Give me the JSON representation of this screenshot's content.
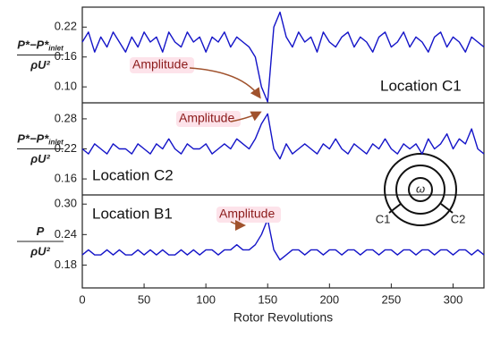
{
  "chart_data": [
    {
      "type": "line",
      "color": "#1414c8",
      "ylabel": {
        "numerator": "P*−P*",
        "numerator_subscript": "inlet",
        "denominator": "ρU²"
      },
      "annotation": "Amplitude",
      "location_label": "Location C1",
      "xlim": [
        0,
        325
      ],
      "ylim": [
        0.068,
        0.26
      ],
      "yticks": [
        {
          "value": 0.1,
          "label": "0.10"
        },
        0.16,
        0.22
      ],
      "x": [
        0,
        5,
        10,
        15,
        20,
        25,
        30,
        35,
        40,
        45,
        50,
        55,
        60,
        65,
        70,
        75,
        80,
        85,
        90,
        95,
        100,
        105,
        110,
        115,
        120,
        125,
        130,
        135,
        140,
        145,
        150,
        155,
        160,
        165,
        170,
        175,
        180,
        185,
        190,
        195,
        200,
        205,
        210,
        215,
        220,
        225,
        230,
        235,
        240,
        245,
        250,
        255,
        260,
        265,
        270,
        275,
        280,
        285,
        290,
        295,
        300,
        305,
        310,
        315,
        320,
        325
      ],
      "values": [
        0.19,
        0.21,
        0.17,
        0.2,
        0.18,
        0.21,
        0.19,
        0.17,
        0.2,
        0.18,
        0.21,
        0.19,
        0.2,
        0.17,
        0.21,
        0.19,
        0.18,
        0.21,
        0.19,
        0.2,
        0.17,
        0.2,
        0.19,
        0.21,
        0.18,
        0.2,
        0.19,
        0.18,
        0.16,
        0.1,
        0.07,
        0.22,
        0.25,
        0.2,
        0.18,
        0.21,
        0.19,
        0.2,
        0.17,
        0.21,
        0.19,
        0.18,
        0.2,
        0.21,
        0.18,
        0.2,
        0.19,
        0.17,
        0.2,
        0.21,
        0.18,
        0.19,
        0.21,
        0.18,
        0.2,
        0.19,
        0.17,
        0.2,
        0.21,
        0.18,
        0.2,
        0.19,
        0.17,
        0.2,
        0.19,
        0.18
      ]
    },
    {
      "type": "line",
      "color": "#1414c8",
      "ylabel": {
        "numerator": "P*−P*",
        "numerator_subscript": "inlet",
        "denominator": "ρU²"
      },
      "annotation": "Amplitude",
      "location_label": "Location C2",
      "xlim": [
        0,
        325
      ],
      "ylim": [
        0.128,
        0.312
      ],
      "yticks": [
        0.16,
        0.22,
        0.28
      ],
      "x": [
        0,
        5,
        10,
        15,
        20,
        25,
        30,
        35,
        40,
        45,
        50,
        55,
        60,
        65,
        70,
        75,
        80,
        85,
        90,
        95,
        100,
        105,
        110,
        115,
        120,
        125,
        130,
        135,
        140,
        145,
        150,
        155,
        160,
        165,
        170,
        175,
        180,
        185,
        190,
        195,
        200,
        205,
        210,
        215,
        220,
        225,
        230,
        235,
        240,
        245,
        250,
        255,
        260,
        265,
        270,
        275,
        280,
        285,
        290,
        295,
        300,
        305,
        310,
        315,
        320,
        325
      ],
      "values": [
        0.22,
        0.21,
        0.23,
        0.22,
        0.21,
        0.23,
        0.22,
        0.22,
        0.21,
        0.23,
        0.22,
        0.21,
        0.23,
        0.22,
        0.24,
        0.22,
        0.21,
        0.23,
        0.22,
        0.22,
        0.23,
        0.21,
        0.22,
        0.23,
        0.22,
        0.24,
        0.23,
        0.22,
        0.24,
        0.27,
        0.29,
        0.22,
        0.2,
        0.23,
        0.21,
        0.22,
        0.23,
        0.22,
        0.21,
        0.23,
        0.22,
        0.24,
        0.22,
        0.21,
        0.23,
        0.22,
        0.21,
        0.23,
        0.22,
        0.24,
        0.22,
        0.21,
        0.23,
        0.22,
        0.23,
        0.21,
        0.24,
        0.22,
        0.23,
        0.25,
        0.22,
        0.24,
        0.23,
        0.26,
        0.22,
        0.21
      ]
    },
    {
      "type": "line",
      "color": "#1414c8",
      "ylabel": {
        "numerator": "P",
        "denominator": "ρU²"
      },
      "annotation": "Amplitude",
      "location_label": "Location B1",
      "xlim": [
        0,
        325
      ],
      "ylim": [
        0.135,
        0.318
      ],
      "yticks": [
        0.18,
        0.24,
        {
          "value": 0.3,
          "label": "0.30"
        }
      ],
      "xticks": [
        0,
        50,
        100,
        150,
        200,
        250,
        300
      ],
      "xlabel": "Rotor Revolutions",
      "x": [
        0,
        5,
        10,
        15,
        20,
        25,
        30,
        35,
        40,
        45,
        50,
        55,
        60,
        65,
        70,
        75,
        80,
        85,
        90,
        95,
        100,
        105,
        110,
        115,
        120,
        125,
        130,
        135,
        140,
        145,
        150,
        155,
        160,
        165,
        170,
        175,
        180,
        185,
        190,
        195,
        200,
        205,
        210,
        215,
        220,
        225,
        230,
        235,
        240,
        245,
        250,
        255,
        260,
        265,
        270,
        275,
        280,
        285,
        290,
        295,
        300,
        305,
        310,
        315,
        320,
        325
      ],
      "values": [
        0.2,
        0.21,
        0.2,
        0.2,
        0.21,
        0.2,
        0.21,
        0.2,
        0.2,
        0.21,
        0.2,
        0.21,
        0.2,
        0.21,
        0.2,
        0.2,
        0.21,
        0.2,
        0.21,
        0.2,
        0.21,
        0.21,
        0.2,
        0.21,
        0.21,
        0.22,
        0.21,
        0.21,
        0.22,
        0.24,
        0.27,
        0.21,
        0.19,
        0.2,
        0.21,
        0.21,
        0.2,
        0.21,
        0.21,
        0.2,
        0.21,
        0.21,
        0.2,
        0.21,
        0.21,
        0.2,
        0.21,
        0.21,
        0.2,
        0.21,
        0.21,
        0.2,
        0.21,
        0.21,
        0.2,
        0.21,
        0.21,
        0.2,
        0.21,
        0.21,
        0.2,
        0.21,
        0.21,
        0.2,
        0.21,
        0.2
      ]
    }
  ],
  "inset": {
    "labels": [
      "C1",
      "C2",
      "ω"
    ]
  }
}
